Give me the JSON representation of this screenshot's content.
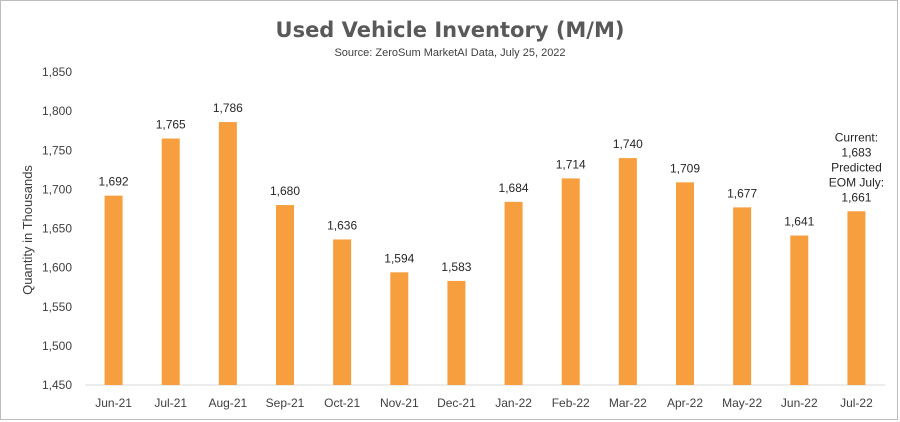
{
  "chart_data": {
    "type": "bar",
    "title": "Used Vehicle Inventory (M/M)",
    "subtitle": "Source: ZeroSum MarketAI Data, July 25, 2022",
    "xlabel": "",
    "ylabel": "Quantity in Thousands",
    "ylim": [
      1450,
      1850
    ],
    "yticks": [
      "1,450",
      "1,500",
      "1,550",
      "1,600",
      "1,650",
      "1,700",
      "1,750",
      "1,800",
      "1,850"
    ],
    "grid": false,
    "categories": [
      "Jun-21",
      "Jul-21",
      "Aug-21",
      "Sep-21",
      "Oct-21",
      "Nov-21",
      "Dec-21",
      "Jan-22",
      "Feb-22",
      "Mar-22",
      "Apr-22",
      "May-22",
      "Jun-22",
      "Jul-22"
    ],
    "values": [
      1692,
      1765,
      1786,
      1680,
      1636,
      1594,
      1583,
      1684,
      1714,
      1740,
      1709,
      1677,
      1641,
      1672
    ],
    "data_labels": [
      [
        "1,692"
      ],
      [
        "1,765"
      ],
      [
        "1,786"
      ],
      [
        "1,680"
      ],
      [
        "1,636"
      ],
      [
        "1,594"
      ],
      [
        "1,583"
      ],
      [
        "1,684"
      ],
      [
        "1,714"
      ],
      [
        "1,740"
      ],
      [
        "1,709"
      ],
      [
        "1,677"
      ],
      [
        "1,641"
      ],
      [
        "Current:",
        "1,683",
        "Predicted",
        "EOM July:",
        "1,661"
      ]
    ],
    "bar_color": "#F79F3F"
  }
}
